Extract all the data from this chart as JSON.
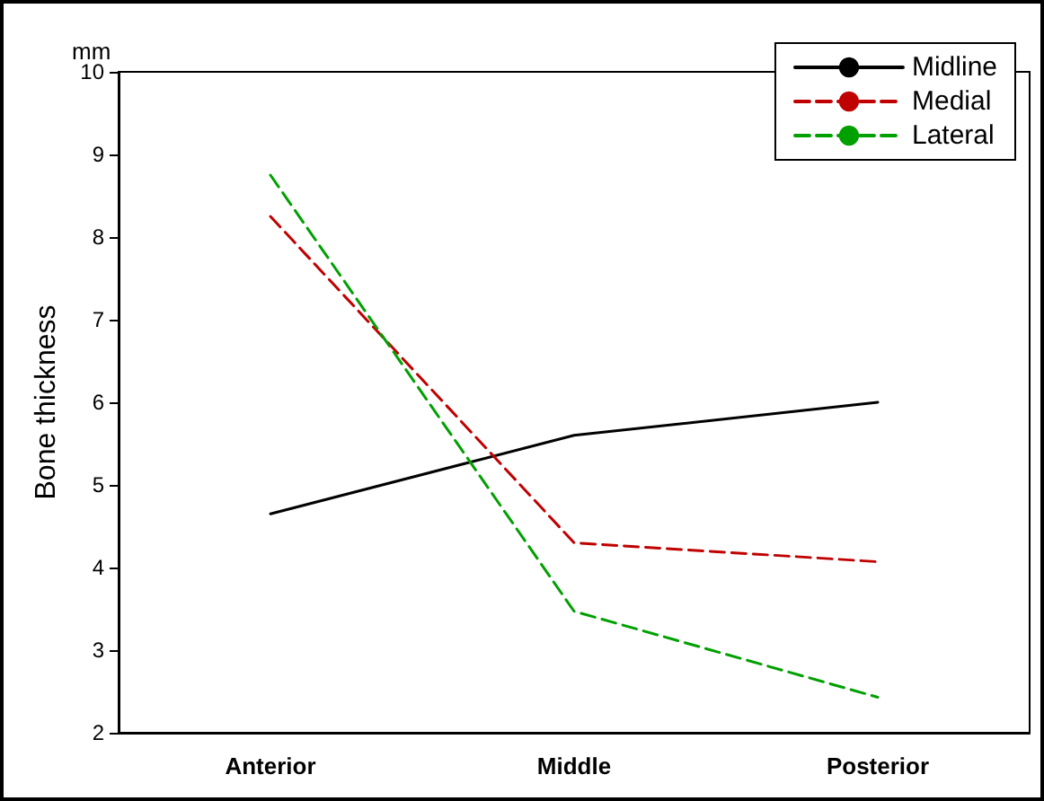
{
  "chart_data": {
    "type": "line",
    "ylabel": "Bone thickness",
    "annotations": [
      "mm"
    ],
    "categories": [
      "Anterior",
      "Middle",
      "Posterior"
    ],
    "series": [
      {
        "name": "Midline",
        "color": "#000000",
        "line_style": "solid",
        "values": [
          4.65,
          5.6,
          6.0
        ]
      },
      {
        "name": "Medial",
        "color": "#c00000",
        "line_style": "dashed",
        "values": [
          8.25,
          4.3,
          4.07
        ]
      },
      {
        "name": "Lateral",
        "color": "#00a000",
        "line_style": "dashed",
        "values": [
          8.75,
          3.47,
          2.43
        ]
      }
    ],
    "ylim": [
      2,
      10
    ],
    "yticks": [
      2,
      3,
      4,
      5,
      6,
      7,
      8,
      9,
      10
    ],
    "grid": false,
    "legend": "top right",
    "marker": "none"
  }
}
